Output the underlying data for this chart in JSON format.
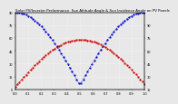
{
  "title": "Solar PV/Inverter Performance  Sun Altitude Angle & Sun Incidence Angle on PV Panels",
  "line1_label": "Sun Altitude Angle",
  "line2_label": "Sun Incidence Angle",
  "line1_color": "#0000cc",
  "line2_color": "#cc0000",
  "bg_color": "#e8e8e8",
  "plot_bg": "#e8e8e8",
  "grid_color": "#ffffff",
  "ylim": [
    0,
    90
  ],
  "xlim": [
    0,
    1
  ],
  "n_points": 60,
  "title_fontsize": 2.8,
  "tick_fontsize": 2.5,
  "linewidth": 0.6,
  "markersize": 1.2
}
